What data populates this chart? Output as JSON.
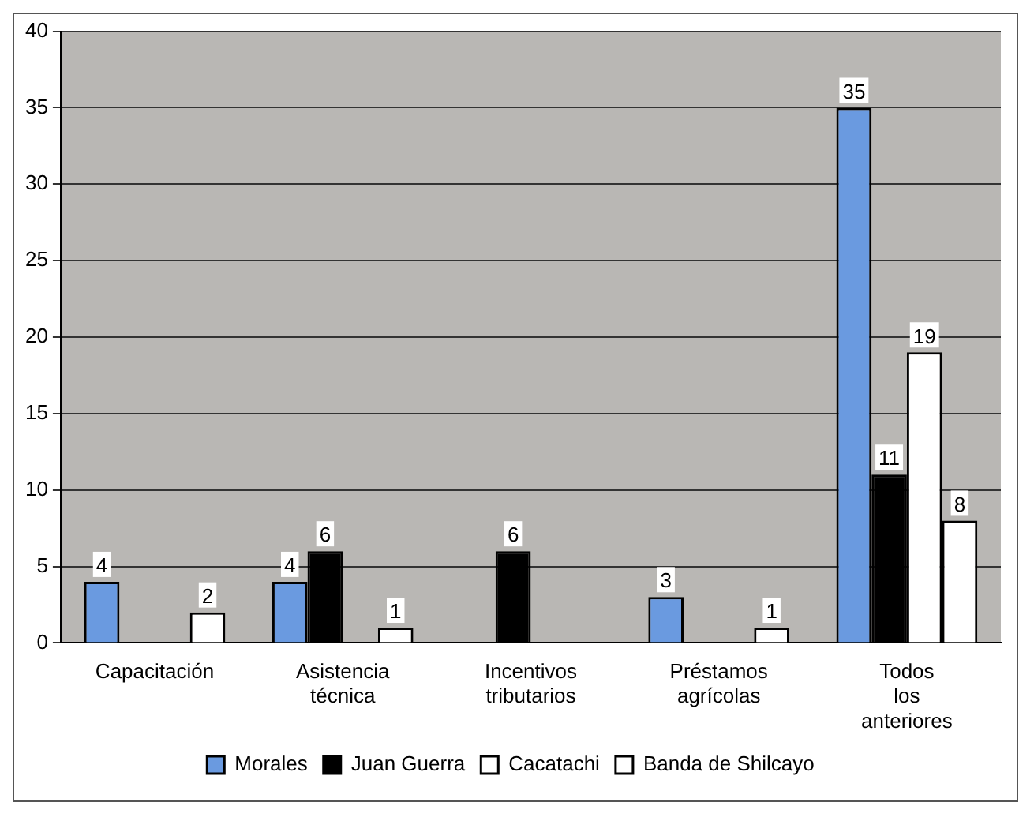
{
  "chart_data": {
    "type": "bar",
    "categories": [
      "Capacitación",
      "Asistencia técnica",
      "Incentivos tributarios",
      "Préstamos agrícolas",
      "Todos los anteriores"
    ],
    "series": [
      {
        "name": "Morales",
        "color": "#6a9ae0",
        "values": [
          4,
          4,
          0,
          3,
          35
        ],
        "value_labels": [
          "4",
          "4",
          null,
          "3",
          "35"
        ]
      },
      {
        "name": "Juan Guerra",
        "color": "#000000",
        "values": [
          0,
          6,
          6,
          0,
          11
        ],
        "value_labels": [
          null,
          "6",
          "6",
          null,
          "11"
        ]
      },
      {
        "name": "Cacatachi",
        "color": "#ffffff",
        "values": [
          0,
          0,
          0,
          0,
          19
        ],
        "value_labels": [
          null,
          null,
          null,
          null,
          "19"
        ]
      },
      {
        "name": "Banda de Shilcayo",
        "color": "#ffffff",
        "values": [
          2,
          1,
          0,
          1,
          8
        ],
        "value_labels": [
          "2",
          "1",
          null,
          "1",
          "8"
        ]
      }
    ],
    "ylim": [
      0,
      40
    ],
    "yticks": [
      0,
      5,
      10,
      15,
      20,
      25,
      30,
      35,
      40
    ],
    "grid": "y",
    "legend": "bottom"
  }
}
